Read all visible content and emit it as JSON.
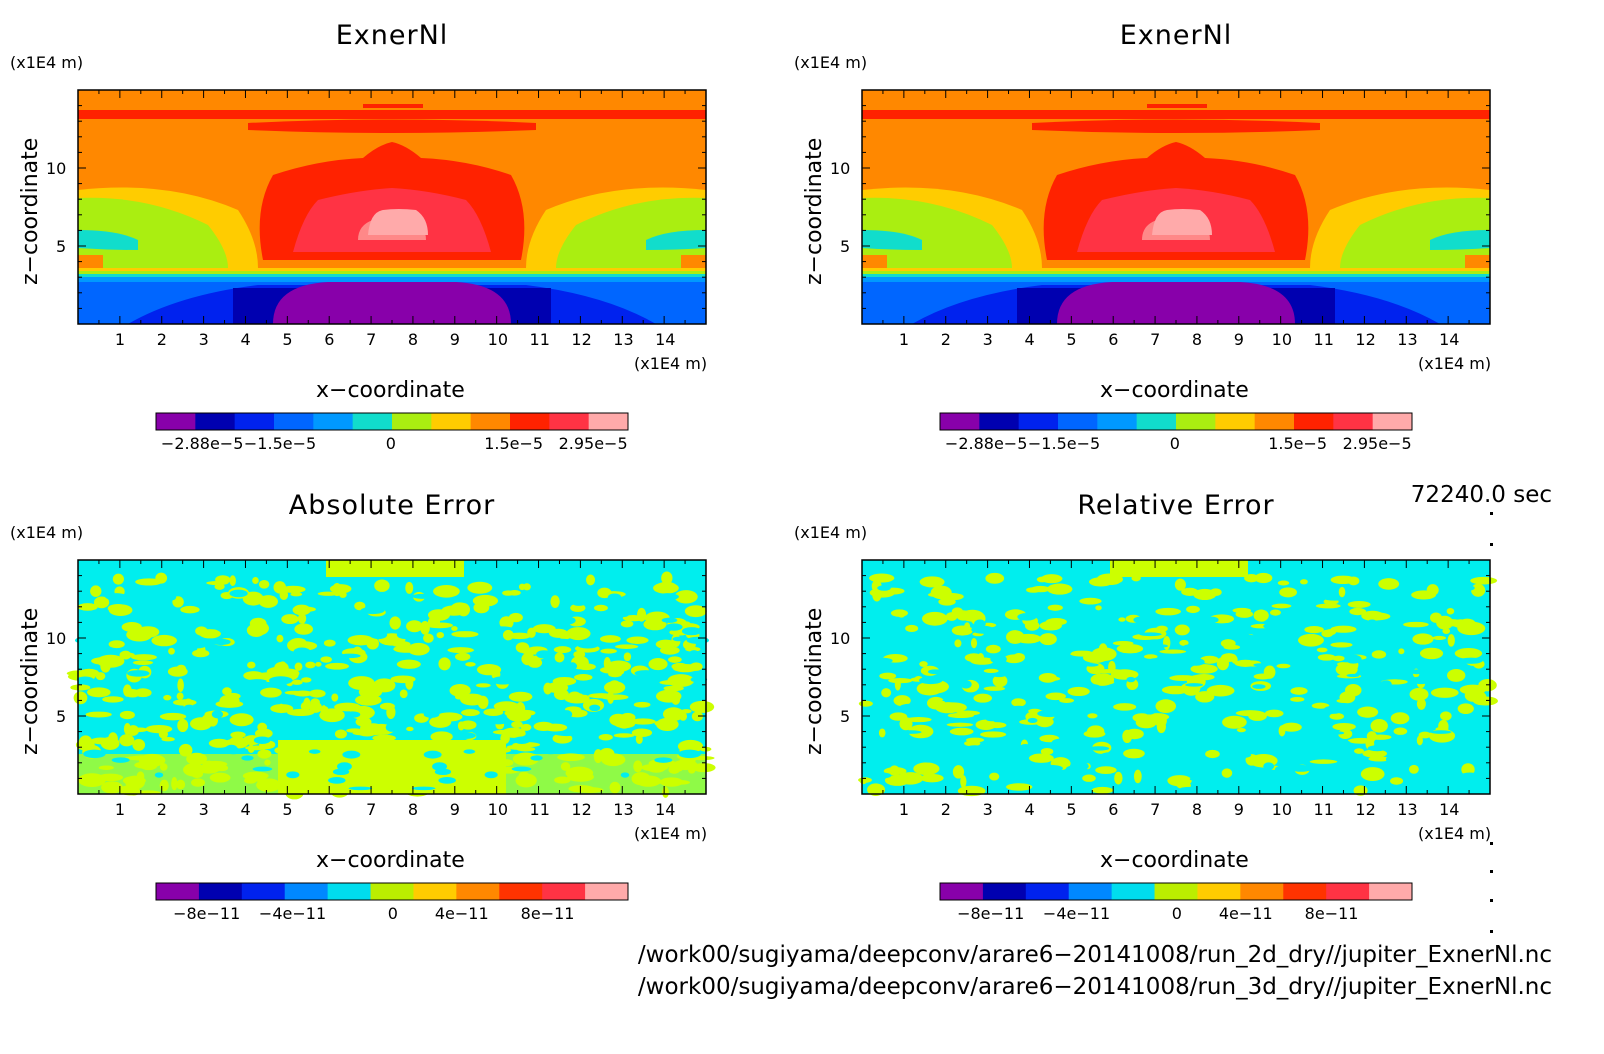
{
  "panels": [
    {
      "title": "ExnerNl",
      "type": "exner",
      "xlabel": "x−coordinate",
      "ylabel": "z−coordinate",
      "x_unit": "(x1E4 m)",
      "y_unit": "(x1E4 m)",
      "xticks": [
        "1",
        "2",
        "3",
        "4",
        "5",
        "6",
        "7",
        "8",
        "9",
        "10",
        "11",
        "12",
        "13",
        "14"
      ],
      "yticks": [
        "5",
        "10"
      ],
      "colorbar_labels": [
        "−2.88e−5",
        "−1.5e−5",
        "0",
        "1.5e−5",
        "2.95e−5"
      ]
    },
    {
      "title": "ExnerNl",
      "type": "exner",
      "xlabel": "x−coordinate",
      "ylabel": "z−coordinate",
      "x_unit": "(x1E4 m)",
      "y_unit": "(x1E4 m)",
      "xticks": [
        "1",
        "2",
        "3",
        "4",
        "5",
        "6",
        "7",
        "8",
        "9",
        "10",
        "11",
        "12",
        "13",
        "14"
      ],
      "yticks": [
        "5",
        "10"
      ],
      "colorbar_labels": [
        "−2.88e−5",
        "−1.5e−5",
        "0",
        "1.5e−5",
        "2.95e−5"
      ]
    },
    {
      "title": "Absolute Error",
      "type": "error_abs",
      "xlabel": "x−coordinate",
      "ylabel": "z−coordinate",
      "x_unit": "(x1E4 m)",
      "y_unit": "(x1E4 m)",
      "xticks": [
        "1",
        "2",
        "3",
        "4",
        "5",
        "6",
        "7",
        "8",
        "9",
        "10",
        "11",
        "12",
        "13",
        "14"
      ],
      "yticks": [
        "5",
        "10"
      ],
      "colorbar_labels": [
        "−8e−11",
        "−4e−11",
        "0",
        "4e−11",
        "8e−11"
      ]
    },
    {
      "title": "Relative Error",
      "type": "error_rel",
      "xlabel": "x−coordinate",
      "ylabel": "z−coordinate",
      "x_unit": "(x1E4 m)",
      "y_unit": "(x1E4 m)",
      "xticks": [
        "1",
        "2",
        "3",
        "4",
        "5",
        "6",
        "7",
        "8",
        "9",
        "10",
        "11",
        "12",
        "13",
        "14"
      ],
      "yticks": [
        "5",
        "10"
      ],
      "colorbar_labels": [
        "−8e−11",
        "−4e−11",
        "0",
        "4e−11",
        "8e−11"
      ]
    }
  ],
  "colorbar_colors": [
    "#8800aa",
    "#0000b0",
    "#0022ee",
    "#0088ff",
    "#00ddee",
    "#bbee00",
    "#ffcc00",
    "#ff8800",
    "#ff3300",
    "#ff3344",
    "#ffaaaa"
  ],
  "colorbar_colors_exner": [
    "#8800aa",
    "#0000b0",
    "#0022ee",
    "#0066ff",
    "#0099ff",
    "#11ddcc",
    "#aaee11",
    "#ffcc00",
    "#ff8800",
    "#ff2200",
    "#ff3344",
    "#ffaaaa"
  ],
  "time_label": "72240.0 sec",
  "file_paths": [
    "/work00/sugiyama/deepconv/arare6−20141008/run_2d_dry//jupiter_ExnerNl.nc",
    "/work00/sugiyama/deepconv/arare6−20141008/run_3d_dry//jupiter_ExnerNl.nc"
  ],
  "chart_data": [
    {
      "type": "heatmap",
      "title": "ExnerNl",
      "xlabel": "x−coordinate",
      "ylabel": "z−coordinate",
      "x_unit": "(x1E4 m)",
      "y_unit": "(x1E4 m)",
      "xlim": [
        0,
        15
      ],
      "ylim": [
        0,
        15
      ],
      "colorbar_ticks": [
        -2.88e-05,
        -1.5e-05,
        0,
        1.5e-05,
        2.95e-05
      ]
    },
    {
      "type": "heatmap",
      "title": "ExnerNl",
      "xlabel": "x−coordinate",
      "ylabel": "z−coordinate",
      "x_unit": "(x1E4 m)",
      "y_unit": "(x1E4 m)",
      "xlim": [
        0,
        15
      ],
      "ylim": [
        0,
        15
      ],
      "colorbar_ticks": [
        -2.88e-05,
        -1.5e-05,
        0,
        1.5e-05,
        2.95e-05
      ]
    },
    {
      "type": "heatmap",
      "title": "Absolute Error",
      "xlabel": "x−coordinate",
      "ylabel": "z−coordinate",
      "x_unit": "(x1E4 m)",
      "y_unit": "(x1E4 m)",
      "xlim": [
        0,
        15
      ],
      "ylim": [
        0,
        15
      ],
      "colorbar_ticks": [
        -8e-11,
        -4e-11,
        0,
        4e-11,
        8e-11
      ]
    },
    {
      "type": "heatmap",
      "title": "Relative Error",
      "xlabel": "x−coordinate",
      "ylabel": "z−coordinate",
      "x_unit": "(x1E4 m)",
      "y_unit": "(x1E4 m)",
      "xlim": [
        0,
        15
      ],
      "ylim": [
        0,
        15
      ],
      "colorbar_ticks": [
        -8e-11,
        -4e-11,
        0,
        4e-11,
        8e-11
      ]
    }
  ]
}
